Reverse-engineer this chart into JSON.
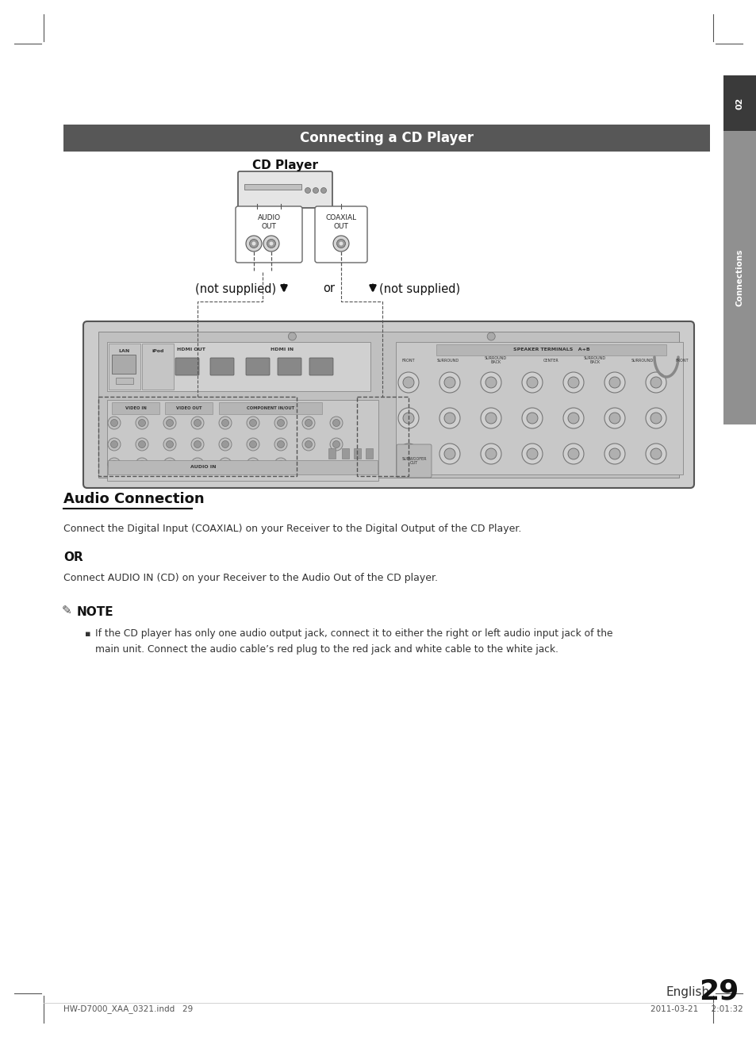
{
  "page_bg": "#ffffff",
  "header_bar_color": "#575757",
  "header_text": "Connecting a CD Player",
  "header_text_color": "#ffffff",
  "cd_player_label": "CD Player",
  "audio_out_label": "AUDIO\nOUT",
  "coaxial_out_label": "COAXIAL\nOUT",
  "not_supplied_left": "(not supplied)",
  "not_supplied_right": "(not supplied)",
  "or_text": "or",
  "section_title": "Audio Connection",
  "line1": "Connect the Digital Input (COAXIAL) on your Receiver to the Digital Output of the CD Player.",
  "or_label": "OR",
  "line2": "Connect AUDIO IN (CD) on your Receiver to the Audio Out of the CD player.",
  "note_title": "NOTE",
  "note_text": "If the CD player has only one audio output jack, connect it to either the right or left audio input jack of the\nmain unit. Connect the audio cable’s red plug to the red jack and white cable to the white jack.",
  "page_number": "29",
  "english_label": "English",
  "footer_left": "HW-D7000_XAA_0321.indd   29",
  "footer_right": "2011-03-21     2:01:32",
  "tab_text_1": "02",
  "tab_text_2": "Connections",
  "tab_bg": "#909090",
  "tab_dark": "#3a3a3a",
  "trim_color": "#555555"
}
